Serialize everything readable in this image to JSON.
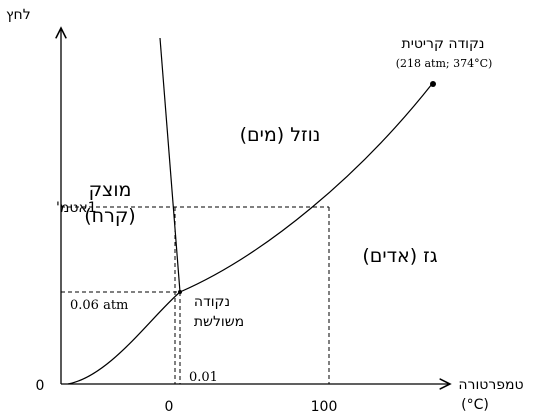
{
  "axes": {
    "y_label": "לחץ",
    "x_label_line1": "טמפרטורה",
    "x_label_line2": "(°C)",
    "origin_label": "0",
    "y_tick_1atm": "1אטמ'",
    "x_tick_0": "0",
    "x_tick_100": "100"
  },
  "regions": {
    "solid_line1": "מוצק",
    "solid_line2": "(קרח)",
    "liquid": "נוזל (מים)",
    "gas": "גז (אדים)"
  },
  "critical_point": {
    "label": "נקודה קריטית",
    "values": "(218 atm; 374°C)"
  },
  "triple_point": {
    "label_line1": "נקודה",
    "label_line2": "משולשת",
    "pressure": "0.06 atm",
    "temperature": "0.01"
  }
}
